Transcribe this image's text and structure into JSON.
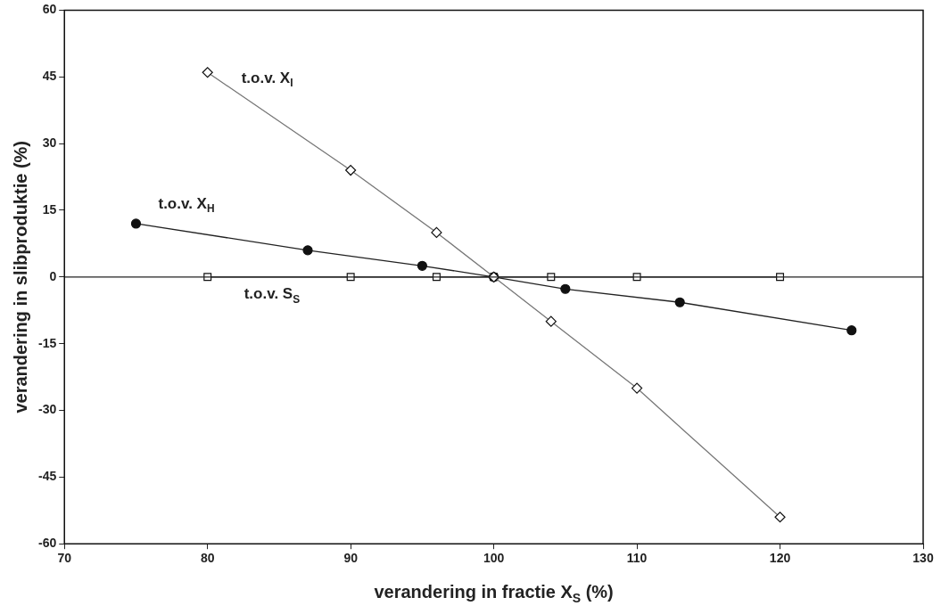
{
  "chart_data": {
    "type": "line",
    "xlabel": "verandering in fractie X$_{S}$ (%)",
    "ylabel": "verandering in slibproduktie (%)",
    "xlim": [
      70,
      130
    ],
    "xticks": [
      70,
      80,
      90,
      100,
      110,
      120,
      130
    ],
    "ylim": [
      -60,
      60
    ],
    "yticks": [
      -60,
      -45,
      -30,
      -15,
      0,
      15,
      30,
      45,
      60
    ],
    "ref_lines": [
      {
        "axis": "y",
        "value": 0,
        "color": "#222222"
      }
    ],
    "series": [
      {
        "name": "t.o.v. X$_{I}$",
        "type": "line",
        "marker": "diamond",
        "color": "#777777",
        "x": [
          80,
          90,
          96,
          100,
          104,
          110,
          120
        ],
        "values": [
          46,
          24,
          10,
          0,
          -10,
          -25,
          -54
        ]
      },
      {
        "name": "t.o.v. X$_{H}$",
        "type": "line",
        "marker": "circle",
        "color": "#222222",
        "x": [
          75,
          87,
          95,
          100,
          105,
          113,
          125
        ],
        "values": [
          12,
          6,
          2.5,
          0,
          -2.7,
          -5.7,
          -12
        ]
      },
      {
        "name": "t.o.v. S$_{S}$",
        "type": "line",
        "marker": "square",
        "color": "#222222",
        "x": [
          80,
          90,
          96,
          100,
          104,
          110,
          120
        ],
        "values": [
          0,
          0,
          0,
          0,
          0,
          0,
          0
        ]
      }
    ]
  }
}
